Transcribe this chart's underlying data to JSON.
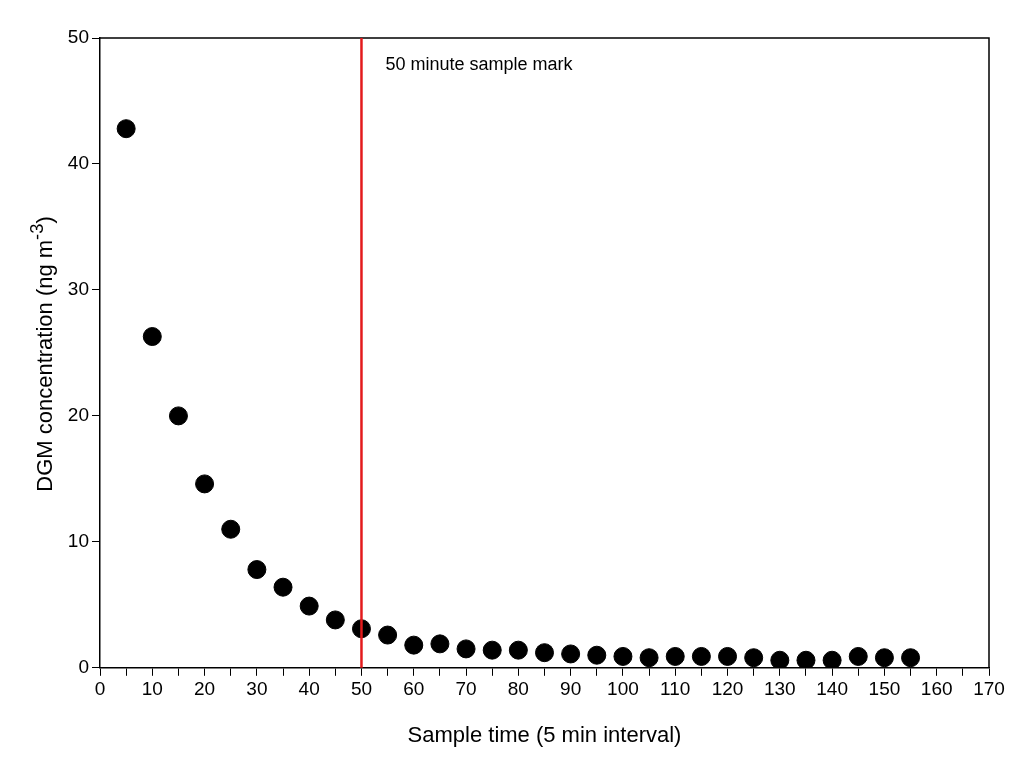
{
  "chart_data": {
    "type": "scatter",
    "xlabel": "Sample time (5 min interval)",
    "ylabel": "DGM concentration (ng m$^{-3}$)",
    "x": [
      5,
      10,
      15,
      20,
      25,
      30,
      35,
      40,
      45,
      50,
      55,
      60,
      65,
      70,
      75,
      80,
      85,
      90,
      95,
      100,
      105,
      110,
      115,
      120,
      125,
      130,
      135,
      140,
      145,
      150,
      155
    ],
    "series": [
      {
        "color": "#000000",
        "values": [
          42.8,
          26.3,
          20.0,
          14.6,
          11.0,
          7.8,
          6.4,
          4.9,
          3.8,
          3.1,
          2.6,
          1.8,
          1.9,
          1.5,
          1.4,
          1.4,
          1.2,
          1.1,
          1.0,
          0.9,
          0.8,
          0.9,
          0.9,
          0.9,
          0.8,
          0.6,
          0.6,
          0.6,
          0.9,
          0.8,
          0.8
        ]
      }
    ],
    "marker": "circle",
    "xlim": [
      0,
      170
    ],
    "xticks": [
      0,
      {
        "value": 5,
        "label": null
      },
      10,
      {
        "value": 15,
        "label": null
      },
      20,
      {
        "value": 25,
        "label": null
      },
      30,
      {
        "value": 35,
        "label": null
      },
      40,
      {
        "value": 45,
        "label": null
      },
      50,
      {
        "value": 55,
        "label": null
      },
      60,
      {
        "value": 65,
        "label": null
      },
      70,
      {
        "value": 75,
        "label": null
      },
      80,
      {
        "value": 85,
        "label": null
      },
      90,
      {
        "value": 95,
        "label": null
      },
      100,
      {
        "value": 105,
        "label": null
      },
      110,
      {
        "value": 115,
        "label": null
      },
      120,
      {
        "value": 125,
        "label": null
      },
      130,
      {
        "value": 135,
        "label": null
      },
      140,
      {
        "value": 145,
        "label": null
      },
      150,
      {
        "value": 155,
        "label": null
      },
      160,
      {
        "value": 165,
        "label": null
      },
      170
    ],
    "ylim": [
      0,
      50
    ],
    "yticks": [
      0,
      10,
      20,
      30,
      40,
      50
    ],
    "ref_lines": [
      {
        "axis": "x",
        "value": 50,
        "label": "50 minute sample mark",
        "color": "#e31a1c"
      }
    ],
    "grid": false,
    "legend": false
  }
}
